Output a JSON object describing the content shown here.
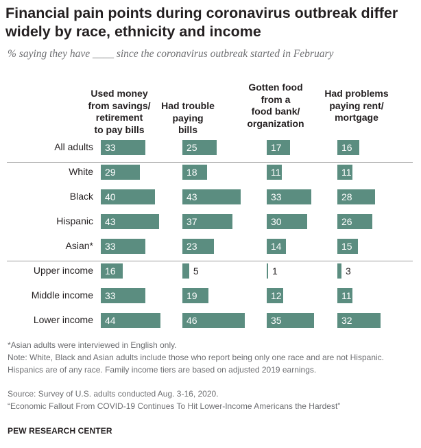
{
  "title": "Financial pain points during coronavirus outbreak differ widely by race, ethnicity and income",
  "subtitle": "% saying they have ____ since the coronavirus outbreak started in February",
  "chart_data": {
    "type": "bar",
    "columns": [
      "Used money from savings/ retirement to pay bills",
      "Had trouble paying bills",
      "Gotten food from a food bank/ organization",
      "Had problems paying rent/ mortgage"
    ],
    "categories": [
      "All adults",
      "White",
      "Black",
      "Hispanic",
      "Asian*",
      "Upper income",
      "Middle income",
      "Lower income"
    ],
    "series": [
      {
        "values": [
          33,
          29,
          40,
          43,
          33,
          16,
          33,
          44
        ]
      },
      {
        "values": [
          25,
          18,
          43,
          37,
          23,
          5,
          19,
          46
        ]
      },
      {
        "values": [
          17,
          11,
          33,
          30,
          14,
          1,
          12,
          35
        ]
      },
      {
        "values": [
          16,
          11,
          28,
          26,
          15,
          3,
          11,
          32
        ]
      }
    ],
    "bar_color": "#5b8d80"
  },
  "notes": {
    "asian": "*Asian adults were interviewed in English only.",
    "note": "Note: White, Black and Asian adults include those who report being only one race and are not Hispanic. Hispanics are of any race. Family income tiers are based on adjusted 2019 earnings.",
    "source": "Source: Survey of U.S. adults conducted Aug. 3-16, 2020.",
    "report": "“Economic Fallout From COVID-19 Continues To Hit Lower-Income Americans the Hardest”"
  },
  "brand": "PEW RESEARCH CENTER"
}
